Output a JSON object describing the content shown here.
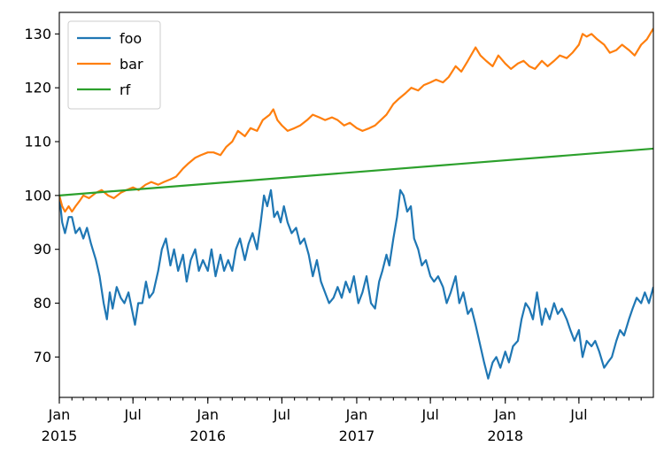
{
  "chart_data": {
    "type": "line",
    "title": "",
    "xlabel": "",
    "ylabel": "",
    "xlim": [
      "2015-01-01",
      "2018-12-31"
    ],
    "ylim": [
      62.5,
      134
    ],
    "grid": false,
    "legend_position": "top-left",
    "y_ticks": [
      70,
      80,
      90,
      100,
      110,
      120,
      130
    ],
    "x_major_ticks": [
      {
        "date": "2015-01-01",
        "line1": "Jan",
        "line2": "2015"
      },
      {
        "date": "2015-07-01",
        "line1": "Jul",
        "line2": ""
      },
      {
        "date": "2016-01-01",
        "line1": "Jan",
        "line2": "2016"
      },
      {
        "date": "2016-07-01",
        "line1": "Jul",
        "line2": ""
      },
      {
        "date": "2017-01-01",
        "line1": "Jan",
        "line2": "2017"
      },
      {
        "date": "2017-07-01",
        "line1": "Jul",
        "line2": ""
      },
      {
        "date": "2018-01-01",
        "line1": "Jan",
        "line2": "2018"
      },
      {
        "date": "2018-07-01",
        "line1": "Jul",
        "line2": ""
      }
    ],
    "series": [
      {
        "name": "foo",
        "color": "#1f77b4",
        "points": [
          [
            "2015-01-01",
            100
          ],
          [
            "2015-01-08",
            95
          ],
          [
            "2015-01-15",
            93
          ],
          [
            "2015-01-24",
            96
          ],
          [
            "2015-02-01",
            96
          ],
          [
            "2015-02-10",
            93
          ],
          [
            "2015-02-20",
            94
          ],
          [
            "2015-03-01",
            92
          ],
          [
            "2015-03-10",
            94
          ],
          [
            "2015-03-20",
            91
          ],
          [
            "2015-04-01",
            88
          ],
          [
            "2015-04-10",
            85
          ],
          [
            "2015-04-20",
            80
          ],
          [
            "2015-04-28",
            77
          ],
          [
            "2015-05-05",
            82
          ],
          [
            "2015-05-12",
            79
          ],
          [
            "2015-05-22",
            83
          ],
          [
            "2015-06-01",
            81
          ],
          [
            "2015-06-10",
            80
          ],
          [
            "2015-06-20",
            82
          ],
          [
            "2015-06-28",
            79
          ],
          [
            "2015-07-06",
            76
          ],
          [
            "2015-07-14",
            80
          ],
          [
            "2015-07-24",
            80
          ],
          [
            "2015-08-02",
            84
          ],
          [
            "2015-08-10",
            81
          ],
          [
            "2015-08-20",
            82
          ],
          [
            "2015-09-01",
            86
          ],
          [
            "2015-09-10",
            90
          ],
          [
            "2015-09-20",
            92
          ],
          [
            "2015-10-01",
            87
          ],
          [
            "2015-10-10",
            90
          ],
          [
            "2015-10-20",
            86
          ],
          [
            "2015-11-01",
            89
          ],
          [
            "2015-11-10",
            84
          ],
          [
            "2015-11-20",
            88
          ],
          [
            "2015-12-01",
            90
          ],
          [
            "2015-12-10",
            86
          ],
          [
            "2015-12-20",
            88
          ],
          [
            "2016-01-01",
            86
          ],
          [
            "2016-01-10",
            90
          ],
          [
            "2016-01-20",
            85
          ],
          [
            "2016-02-01",
            89
          ],
          [
            "2016-02-10",
            86
          ],
          [
            "2016-02-20",
            88
          ],
          [
            "2016-03-01",
            86
          ],
          [
            "2016-03-10",
            90
          ],
          [
            "2016-03-20",
            92
          ],
          [
            "2016-04-01",
            88
          ],
          [
            "2016-04-10",
            91
          ],
          [
            "2016-04-20",
            93
          ],
          [
            "2016-05-01",
            90
          ],
          [
            "2016-05-10",
            95
          ],
          [
            "2016-05-18",
            100
          ],
          [
            "2016-05-26",
            98
          ],
          [
            "2016-06-04",
            101
          ],
          [
            "2016-06-12",
            96
          ],
          [
            "2016-06-20",
            97
          ],
          [
            "2016-06-28",
            95
          ],
          [
            "2016-07-06",
            98
          ],
          [
            "2016-07-15",
            95
          ],
          [
            "2016-07-25",
            93
          ],
          [
            "2016-08-05",
            94
          ],
          [
            "2016-08-15",
            91
          ],
          [
            "2016-08-25",
            92
          ],
          [
            "2016-09-05",
            89
          ],
          [
            "2016-09-15",
            85
          ],
          [
            "2016-09-25",
            88
          ],
          [
            "2016-10-05",
            84
          ],
          [
            "2016-10-15",
            82
          ],
          [
            "2016-10-25",
            80
          ],
          [
            "2016-11-05",
            81
          ],
          [
            "2016-11-15",
            83
          ],
          [
            "2016-11-25",
            81
          ],
          [
            "2016-12-05",
            84
          ],
          [
            "2016-12-15",
            82
          ],
          [
            "2016-12-25",
            85
          ],
          [
            "2017-01-05",
            80
          ],
          [
            "2017-01-15",
            82
          ],
          [
            "2017-01-25",
            85
          ],
          [
            "2017-02-05",
            80
          ],
          [
            "2017-02-15",
            79
          ],
          [
            "2017-02-25",
            84
          ],
          [
            "2017-03-05",
            86
          ],
          [
            "2017-03-15",
            89
          ],
          [
            "2017-03-22",
            87
          ],
          [
            "2017-04-01",
            92
          ],
          [
            "2017-04-10",
            96
          ],
          [
            "2017-04-18",
            101
          ],
          [
            "2017-04-26",
            100
          ],
          [
            "2017-05-05",
            97
          ],
          [
            "2017-05-14",
            98
          ],
          [
            "2017-05-22",
            92
          ],
          [
            "2017-06-01",
            90
          ],
          [
            "2017-06-10",
            87
          ],
          [
            "2017-06-20",
            88
          ],
          [
            "2017-07-01",
            85
          ],
          [
            "2017-07-10",
            84
          ],
          [
            "2017-07-20",
            85
          ],
          [
            "2017-08-01",
            83
          ],
          [
            "2017-08-10",
            80
          ],
          [
            "2017-08-20",
            82
          ],
          [
            "2017-09-01",
            85
          ],
          [
            "2017-09-10",
            80
          ],
          [
            "2017-09-20",
            82
          ],
          [
            "2017-10-01",
            78
          ],
          [
            "2017-10-10",
            79
          ],
          [
            "2017-10-20",
            76
          ],
          [
            "2017-11-01",
            72
          ],
          [
            "2017-11-10",
            69
          ],
          [
            "2017-11-20",
            66
          ],
          [
            "2017-12-01",
            69
          ],
          [
            "2017-12-10",
            70
          ],
          [
            "2017-12-20",
            68
          ],
          [
            "2018-01-01",
            71
          ],
          [
            "2018-01-10",
            69
          ],
          [
            "2018-01-20",
            72
          ],
          [
            "2018-02-01",
            73
          ],
          [
            "2018-02-10",
            77
          ],
          [
            "2018-02-20",
            80
          ],
          [
            "2018-03-01",
            79
          ],
          [
            "2018-03-10",
            77
          ],
          [
            "2018-03-20",
            82
          ],
          [
            "2018-04-01",
            76
          ],
          [
            "2018-04-10",
            79
          ],
          [
            "2018-04-20",
            77
          ],
          [
            "2018-05-01",
            80
          ],
          [
            "2018-05-10",
            78
          ],
          [
            "2018-05-20",
            79
          ],
          [
            "2018-06-01",
            77
          ],
          [
            "2018-06-10",
            75
          ],
          [
            "2018-06-20",
            73
          ],
          [
            "2018-07-01",
            75
          ],
          [
            "2018-07-10",
            70
          ],
          [
            "2018-07-20",
            73
          ],
          [
            "2018-08-01",
            72
          ],
          [
            "2018-08-10",
            73
          ],
          [
            "2018-08-20",
            71
          ],
          [
            "2018-09-01",
            68
          ],
          [
            "2018-09-10",
            69
          ],
          [
            "2018-09-20",
            70
          ],
          [
            "2018-10-01",
            73
          ],
          [
            "2018-10-10",
            75
          ],
          [
            "2018-10-20",
            74
          ],
          [
            "2018-11-01",
            77
          ],
          [
            "2018-11-10",
            79
          ],
          [
            "2018-11-20",
            81
          ],
          [
            "2018-12-01",
            80
          ],
          [
            "2018-12-10",
            82
          ],
          [
            "2018-12-20",
            80
          ],
          [
            "2018-12-31",
            83
          ]
        ]
      },
      {
        "name": "bar",
        "color": "#ff7f0e",
        "points": [
          [
            "2015-01-01",
            100
          ],
          [
            "2015-01-08",
            98
          ],
          [
            "2015-01-15",
            97
          ],
          [
            "2015-01-24",
            98
          ],
          [
            "2015-02-01",
            97
          ],
          [
            "2015-02-10",
            98
          ],
          [
            "2015-02-20",
            99
          ],
          [
            "2015-03-01",
            100
          ],
          [
            "2015-03-15",
            99.5
          ],
          [
            "2015-04-01",
            100.5
          ],
          [
            "2015-04-15",
            101
          ],
          [
            "2015-05-01",
            100
          ],
          [
            "2015-05-15",
            99.5
          ],
          [
            "2015-06-01",
            100.5
          ],
          [
            "2015-06-15",
            101
          ],
          [
            "2015-07-01",
            101.5
          ],
          [
            "2015-07-15",
            101
          ],
          [
            "2015-08-01",
            102
          ],
          [
            "2015-08-15",
            102.5
          ],
          [
            "2015-09-01",
            102
          ],
          [
            "2015-09-15",
            102.5
          ],
          [
            "2015-10-01",
            103
          ],
          [
            "2015-10-15",
            103.5
          ],
          [
            "2015-11-01",
            105
          ],
          [
            "2015-11-15",
            106
          ],
          [
            "2015-12-01",
            107
          ],
          [
            "2015-12-15",
            107.5
          ],
          [
            "2016-01-01",
            108
          ],
          [
            "2016-01-15",
            108
          ],
          [
            "2016-02-01",
            107.5
          ],
          [
            "2016-02-15",
            109
          ],
          [
            "2016-03-01",
            110
          ],
          [
            "2016-03-15",
            112
          ],
          [
            "2016-04-01",
            111
          ],
          [
            "2016-04-15",
            112.5
          ],
          [
            "2016-05-01",
            112
          ],
          [
            "2016-05-15",
            114
          ],
          [
            "2016-06-01",
            115
          ],
          [
            "2016-06-10",
            116
          ],
          [
            "2016-06-20",
            114
          ],
          [
            "2016-07-01",
            113
          ],
          [
            "2016-07-15",
            112
          ],
          [
            "2016-08-01",
            112.5
          ],
          [
            "2016-08-15",
            113
          ],
          [
            "2016-09-01",
            114
          ],
          [
            "2016-09-15",
            115
          ],
          [
            "2016-10-01",
            114.5
          ],
          [
            "2016-10-15",
            114
          ],
          [
            "2016-11-01",
            114.5
          ],
          [
            "2016-11-15",
            114
          ],
          [
            "2016-12-01",
            113
          ],
          [
            "2016-12-15",
            113.5
          ],
          [
            "2017-01-01",
            112.5
          ],
          [
            "2017-01-15",
            112
          ],
          [
            "2017-02-01",
            112.5
          ],
          [
            "2017-02-15",
            113
          ],
          [
            "2017-03-01",
            114
          ],
          [
            "2017-03-15",
            115
          ],
          [
            "2017-04-01",
            117
          ],
          [
            "2017-04-15",
            118
          ],
          [
            "2017-05-01",
            119
          ],
          [
            "2017-05-15",
            120
          ],
          [
            "2017-06-01",
            119.5
          ],
          [
            "2017-06-15",
            120.5
          ],
          [
            "2017-07-01",
            121
          ],
          [
            "2017-07-15",
            121.5
          ],
          [
            "2017-08-01",
            121
          ],
          [
            "2017-08-15",
            122
          ],
          [
            "2017-09-01",
            124
          ],
          [
            "2017-09-15",
            123
          ],
          [
            "2017-10-01",
            125
          ],
          [
            "2017-10-20",
            127.5
          ],
          [
            "2017-11-01",
            126
          ],
          [
            "2017-11-15",
            125
          ],
          [
            "2017-12-01",
            124
          ],
          [
            "2017-12-15",
            126
          ],
          [
            "2018-01-01",
            124.5
          ],
          [
            "2018-01-15",
            123.5
          ],
          [
            "2018-02-01",
            124.5
          ],
          [
            "2018-02-15",
            125
          ],
          [
            "2018-03-01",
            124
          ],
          [
            "2018-03-15",
            123.5
          ],
          [
            "2018-04-01",
            125
          ],
          [
            "2018-04-15",
            124
          ],
          [
            "2018-05-01",
            125
          ],
          [
            "2018-05-15",
            126
          ],
          [
            "2018-06-01",
            125.5
          ],
          [
            "2018-06-15",
            126.5
          ],
          [
            "2018-07-01",
            128
          ],
          [
            "2018-07-10",
            130
          ],
          [
            "2018-07-20",
            129.5
          ],
          [
            "2018-08-01",
            130
          ],
          [
            "2018-08-15",
            129
          ],
          [
            "2018-09-01",
            128
          ],
          [
            "2018-09-15",
            126.5
          ],
          [
            "2018-10-01",
            127
          ],
          [
            "2018-10-15",
            128
          ],
          [
            "2018-11-01",
            127
          ],
          [
            "2018-11-15",
            126
          ],
          [
            "2018-12-01",
            128
          ],
          [
            "2018-12-15",
            129
          ],
          [
            "2018-12-31",
            131
          ]
        ]
      },
      {
        "name": "rf",
        "color": "#2ca02c",
        "points": [
          [
            "2015-01-01",
            100
          ],
          [
            "2018-12-31",
            108.7
          ]
        ]
      }
    ]
  }
}
